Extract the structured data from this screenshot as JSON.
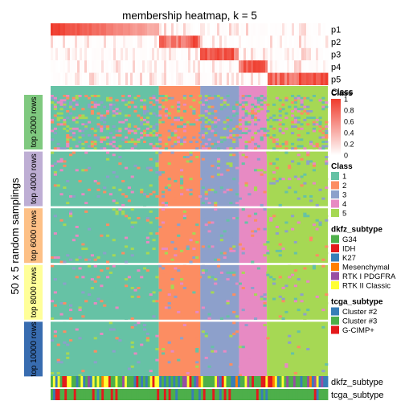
{
  "chart_data": {
    "type": "heatmap",
    "title": "membership heatmap, k = 5",
    "y_title": "50 x 5 random samplings",
    "membership_rows": [
      "p1",
      "p2",
      "p3",
      "p4",
      "p5"
    ],
    "class_row_label": "Class",
    "samplings": [
      "top 2000 rows",
      "top 4000 rows",
      "top 6000 rows",
      "top 8000 rows",
      "top 10000 rows"
    ],
    "sampling_colors": [
      "#7fc97f",
      "#beaed4",
      "#fdc086",
      "#ffff99",
      "#386cb0"
    ],
    "class_order_fractions": {
      "1": [
        0,
        0.39
      ],
      "2": [
        0.39,
        0.54
      ],
      "3": [
        0.54,
        0.68
      ],
      "4": [
        0.68,
        0.78
      ],
      "5": [
        0.78,
        0.89
      ]
    },
    "bottom_annotations": [
      "dkfz_subtype",
      "tcga_subtype"
    ],
    "legends": [
      {
        "title": "Class",
        "type": "continuous",
        "ticks": [
          "1",
          "0.8",
          "0.6",
          "0.4",
          "0.2",
          "0"
        ],
        "low_color": "#ffffff",
        "high_color": "#ef3b2c"
      },
      {
        "title": "Class",
        "type": "discrete",
        "items": [
          {
            "label": "1",
            "color": "#66c2a5"
          },
          {
            "label": "2",
            "color": "#fc8d62"
          },
          {
            "label": "3",
            "color": "#8da0cb"
          },
          {
            "label": "4",
            "color": "#e78ac3"
          },
          {
            "label": "5",
            "color": "#a6d854"
          }
        ]
      },
      {
        "title": "dkfz_subtype",
        "type": "discrete",
        "items": [
          {
            "label": "G34",
            "color": "#4daf4a"
          },
          {
            "label": "IDH",
            "color": "#e41a1c"
          },
          {
            "label": "K27",
            "color": "#377eb8"
          },
          {
            "label": "Mesenchymal",
            "color": "#ff7f00"
          },
          {
            "label": "RTK I PDGFRA",
            "color": "#984ea3"
          },
          {
            "label": "RTK II Classic",
            "color": "#ffff33"
          }
        ]
      },
      {
        "title": "tcga_subtype",
        "type": "discrete",
        "items": [
          {
            "label": "Cluster #2",
            "color": "#377eb8"
          },
          {
            "label": "Cluster #3",
            "color": "#4daf4a"
          },
          {
            "label": "G-CIMP+",
            "color": "#e41a1c"
          }
        ]
      }
    ]
  }
}
